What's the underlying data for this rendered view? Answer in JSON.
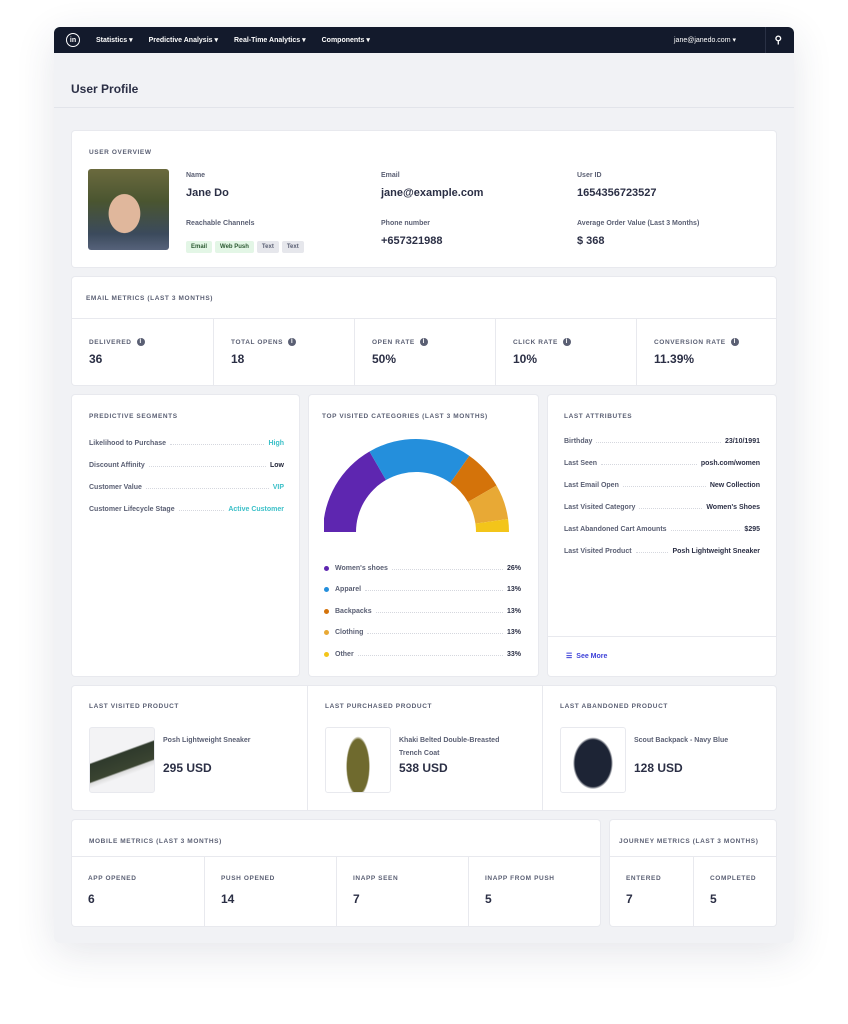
{
  "nav": {
    "menu": [
      "Statistics ▾",
      "Predictive Analysis ▾",
      "Real-Time Analytics ▾",
      "Components ▾"
    ],
    "user": "jane@janedo.com ▾"
  },
  "page_title": "User Profile",
  "overview": {
    "title": "USER OVERVIEW",
    "name_label": "Name",
    "name": "Jane Do",
    "email_label": "Email",
    "email": "jane@example.com",
    "userid_label": "User ID",
    "userid": "1654356723527",
    "channels_label": "Reachable Channels",
    "channels": [
      "Email",
      "Web Push",
      "Text",
      "Text"
    ],
    "phone_label": "Phone number",
    "phone": "+657321988",
    "aov_label": "Average Order Value (Last 3 Months)",
    "aov": "$ 368"
  },
  "email_metrics": {
    "title": "EMAIL METRICS (LAST 3 MONTHS)",
    "items": [
      {
        "label": "DELIVERED",
        "value": "36"
      },
      {
        "label": "TOTAL OPENS",
        "value": "18"
      },
      {
        "label": "OPEN RATE",
        "value": "50%"
      },
      {
        "label": "CLICK RATE",
        "value": "10%"
      },
      {
        "label": "CONVERSION RATE",
        "value": "11.39%"
      }
    ]
  },
  "segments": {
    "title": "PREDICTIVE SEGMENTS",
    "items": [
      {
        "k": "Likelihood to Purchase",
        "v": "High",
        "color": "#3cc0c8"
      },
      {
        "k": "Discount Affinity",
        "v": "Low",
        "color": "#1f2336"
      },
      {
        "k": "Customer Value",
        "v": "VIP",
        "color": "#3cc0c8"
      },
      {
        "k": "Customer Lifecycle Stage",
        "v": "Active Customer",
        "color": "#3cc0c8"
      }
    ]
  },
  "chart_data": {
    "type": "pie",
    "title": "TOP VISITED CATEGORIES (LAST 3 MONTHS)",
    "categories": [
      "Women's shoes",
      "Apparel",
      "Backpacks",
      "Clothing",
      "Other"
    ],
    "values": [
      26,
      13,
      13,
      13,
      33
    ],
    "labels": [
      "26%",
      "13%",
      "13%",
      "13%",
      "33%"
    ],
    "colors": [
      "#5e26b0",
      "#248fdc",
      "#d4730a",
      "#e8a935",
      "#f3c51a"
    ]
  },
  "attributes": {
    "title": "LAST ATTRIBUTES",
    "items": [
      {
        "k": "Birthday",
        "v": "23/10/1991"
      },
      {
        "k": "Last Seen",
        "v": "posh.com/women"
      },
      {
        "k": "Last Email Open",
        "v": "New Collection"
      },
      {
        "k": "Last Visited Category",
        "v": "Women's Shoes"
      },
      {
        "k": "Last Abandoned Cart Amounts",
        "v": "$295"
      },
      {
        "k": "Last Visited Product",
        "v": "Posh Lightweight Sneaker"
      }
    ],
    "see_more": "See More"
  },
  "products": [
    {
      "title": "LAST VISITED PRODUCT",
      "name": "Posh Lightweight Sneaker",
      "price": "295 USD"
    },
    {
      "title": "LAST PURCHASED PRODUCT",
      "name": "Khaki Belted Double-Breasted Trench Coat",
      "price": "538 USD"
    },
    {
      "title": "LAST ABANDONED PRODUCT",
      "name": "Scout Backpack - Navy Blue",
      "price": "128 USD"
    }
  ],
  "mobile": {
    "title": "MOBILE METRICS (LAST 3 MONTHS)",
    "items": [
      {
        "label": "APP OPENED",
        "value": "6"
      },
      {
        "label": "PUSH OPENED",
        "value": "14"
      },
      {
        "label": "INAPP SEEN",
        "value": "7"
      },
      {
        "label": "INAPP FROM PUSH",
        "value": "5"
      }
    ]
  },
  "journey": {
    "title": "JOURNEY METRICS (LAST 3 MONTHS)",
    "items": [
      {
        "label": "ENTERED",
        "value": "7"
      },
      {
        "label": "COMPLETED",
        "value": "5"
      }
    ]
  }
}
